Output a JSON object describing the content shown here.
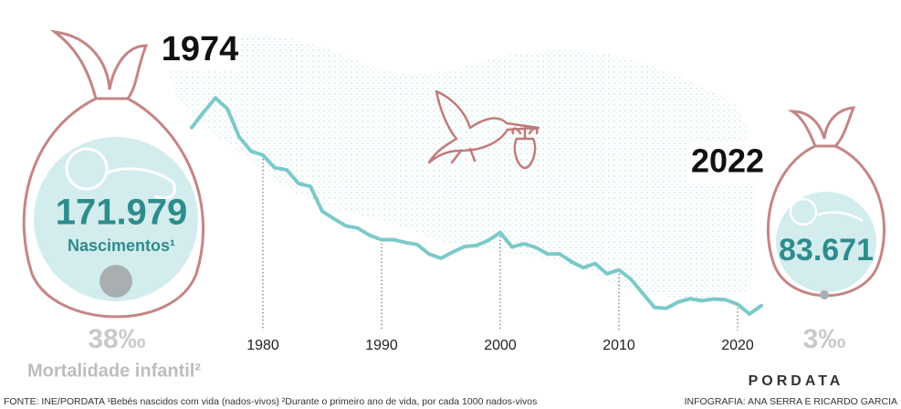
{
  "chart_data": {
    "type": "line",
    "x": [
      1974,
      1975,
      1976,
      1977,
      1978,
      1979,
      1980,
      1981,
      1982,
      1983,
      1984,
      1985,
      1986,
      1987,
      1988,
      1989,
      1990,
      1991,
      1992,
      1993,
      1994,
      1995,
      1996,
      1997,
      1998,
      1999,
      2000,
      2001,
      2002,
      2003,
      2004,
      2005,
      2006,
      2007,
      2008,
      2009,
      2010,
      2011,
      2012,
      2013,
      2014,
      2015,
      2016,
      2017,
      2018,
      2019,
      2020,
      2021,
      2022
    ],
    "series": [
      {
        "color": "#7cc9c9",
        "values": [
          171979,
          179648,
          186712,
          181413,
          167347,
          160314,
          158352,
          152101,
          151029,
          144327,
          142805,
          130492,
          126748,
          123218,
          122121,
          118560,
          116383,
          116415,
          115018,
          114030,
          109287,
          107184,
          110261,
          113047,
          113510,
          116002,
          120008,
          112774,
          114383,
          112515,
          109298,
          109399,
          105449,
          102492,
          104594,
          99491,
          101381,
          96856,
          89841,
          82787,
          82367,
          85500,
          87126,
          86154,
          87020,
          86579,
          84426,
          79582,
          83671
        ],
        "value_labels": [
          "171.979",
          null,
          null,
          null,
          null,
          null,
          null,
          null,
          null,
          null,
          null,
          null,
          null,
          null,
          null,
          null,
          null,
          null,
          null,
          null,
          null,
          null,
          null,
          null,
          null,
          null,
          null,
          null,
          null,
          null,
          null,
          null,
          null,
          null,
          null,
          null,
          null,
          null,
          null,
          null,
          null,
          null,
          null,
          null,
          null,
          null,
          null,
          null,
          "83.671"
        ]
      }
    ],
    "xlim": [
      1974,
      2022
    ],
    "xticks": [
      1980,
      1990,
      2000,
      2010,
      2020
    ],
    "ylim": [
      75000,
      190000
    ],
    "start_label": "1974",
    "end_label": "2022",
    "births_label": "Nascimentos¹",
    "infant_mortality": {
      "label": "Mortalidade infantil²",
      "values": [
        38,
        3
      ],
      "value_labels": [
        "38‰",
        "3‰"
      ]
    },
    "footer": {
      "source": "FONTE: INE/PORDATA   ¹Bebés nascidos com vida (nados-vivos) ²Durante o primeiro ano de vida, por cada 1000 nados-vivos",
      "credits": "INFOGRAFIA: ANA SERRA E RICARDO GARCIA",
      "logo": "PORDATA"
    }
  }
}
